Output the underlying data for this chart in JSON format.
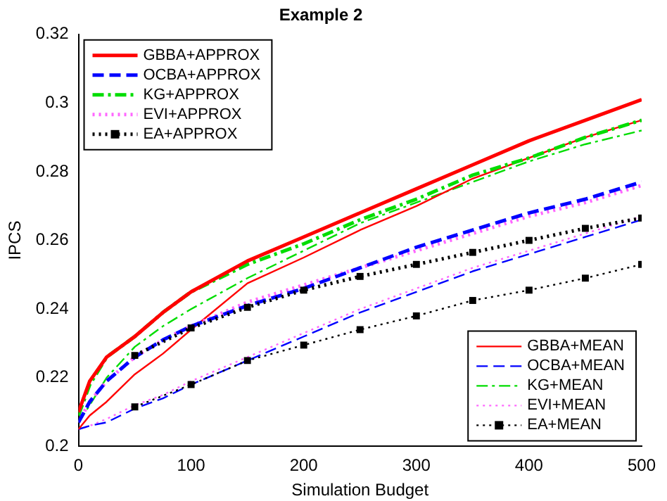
{
  "chart_data": {
    "type": "line",
    "title": "Example 2",
    "xlabel": "Simulation Budget",
    "ylabel": "IPCS",
    "xlim": [
      0,
      500
    ],
    "xticks": [
      0,
      100,
      200,
      300,
      400,
      500
    ],
    "ylim": [
      0.2,
      0.32
    ],
    "yticks": [
      0.2,
      0.22,
      0.24,
      0.26,
      0.28,
      0.3,
      0.32
    ],
    "grid": false,
    "legend": "top left",
    "series": [
      {
        "name": "GBBA+APPROX",
        "color": "#ff0000",
        "line_style": "solid",
        "x": [
          0,
          10,
          25,
          50,
          75,
          100,
          150,
          200,
          250,
          300,
          350,
          400,
          450,
          500
        ],
        "values": [
          0.21,
          0.219,
          0.226,
          0.232,
          0.239,
          0.245,
          0.254,
          0.261,
          0.268,
          0.275,
          0.282,
          0.289,
          0.295,
          0.301
        ]
      },
      {
        "name": "OCBA+APPROX",
        "color": "#0000ff",
        "line_style": "dashed",
        "x": [
          0,
          10,
          25,
          50,
          75,
          100,
          150,
          200,
          250,
          300,
          350,
          400,
          450,
          500
        ],
        "values": [
          0.207,
          0.213,
          0.219,
          0.226,
          0.231,
          0.235,
          0.241,
          0.246,
          0.252,
          0.258,
          0.263,
          0.268,
          0.272,
          0.277
        ]
      },
      {
        "name": "KG+APPROX",
        "color": "#00dd00",
        "line_style": "dashdot",
        "x": [
          0,
          10,
          25,
          50,
          75,
          100,
          150,
          200,
          250,
          300,
          350,
          400,
          450,
          500
        ],
        "values": [
          0.209,
          0.218,
          0.226,
          0.232,
          0.239,
          0.245,
          0.253,
          0.259,
          0.266,
          0.272,
          0.279,
          0.284,
          0.29,
          0.295
        ]
      },
      {
        "name": "EVI+APPROX",
        "color": "#ff66ff",
        "line_style": "dotted",
        "x": [
          0,
          10,
          25,
          50,
          75,
          100,
          150,
          200,
          250,
          300,
          350,
          400,
          450,
          500
        ],
        "values": [
          0.207,
          0.213,
          0.219,
          0.226,
          0.231,
          0.235,
          0.242,
          0.247,
          0.252,
          0.257,
          0.262,
          0.267,
          0.271,
          0.276
        ]
      },
      {
        "name": "EA+APPROX",
        "color": "#000000",
        "line_style": "dotted",
        "marker": "square",
        "x": [
          50,
          100,
          150,
          200,
          250,
          300,
          350,
          400,
          450,
          500
        ],
        "values": [
          0.2265,
          0.2345,
          0.2405,
          0.2455,
          0.2495,
          0.253,
          0.2565,
          0.26,
          0.2635,
          0.2665
        ]
      },
      {
        "name": "GBBA+MEAN",
        "color": "#ff0000",
        "line_style": "solid",
        "x": [
          0,
          10,
          25,
          50,
          75,
          100,
          150,
          200,
          250,
          300,
          350,
          400,
          450,
          500
        ],
        "values": [
          0.205,
          0.209,
          0.213,
          0.221,
          0.227,
          0.234,
          0.2475,
          0.255,
          0.263,
          0.27,
          0.278,
          0.284,
          0.29,
          0.295
        ]
      },
      {
        "name": "OCBA+MEAN",
        "color": "#0000ff",
        "line_style": "dashed",
        "x": [
          0,
          10,
          25,
          50,
          75,
          100,
          150,
          200,
          250,
          300,
          350,
          400,
          450,
          500
        ],
        "values": [
          0.205,
          0.206,
          0.207,
          0.211,
          0.214,
          0.218,
          0.225,
          0.232,
          0.239,
          0.245,
          0.251,
          0.256,
          0.261,
          0.266
        ]
      },
      {
        "name": "KG+MEAN",
        "color": "#00dd00",
        "line_style": "dashdot",
        "x": [
          0,
          10,
          25,
          50,
          75,
          100,
          150,
          200,
          250,
          300,
          350,
          400,
          450,
          500
        ],
        "values": [
          0.207,
          0.212,
          0.22,
          0.229,
          0.235,
          0.24,
          0.249,
          0.257,
          0.265,
          0.271,
          0.277,
          0.283,
          0.288,
          0.292
        ]
      },
      {
        "name": "EVI+MEAN",
        "color": "#ff66ff",
        "line_style": "dotted",
        "x": [
          0,
          10,
          25,
          50,
          75,
          100,
          150,
          200,
          250,
          300,
          350,
          400,
          450,
          500
        ],
        "values": [
          0.205,
          0.206,
          0.208,
          0.212,
          0.215,
          0.219,
          0.226,
          0.233,
          0.24,
          0.246,
          0.252,
          0.257,
          0.262,
          0.267
        ]
      },
      {
        "name": "EA+MEAN",
        "color": "#000000",
        "line_style": "dotted",
        "marker": "square",
        "x": [
          50,
          100,
          150,
          200,
          250,
          300,
          350,
          400,
          450,
          500
        ],
        "values": [
          0.2115,
          0.218,
          0.225,
          0.2295,
          0.234,
          0.238,
          0.2425,
          0.2455,
          0.249,
          0.253
        ]
      }
    ]
  }
}
